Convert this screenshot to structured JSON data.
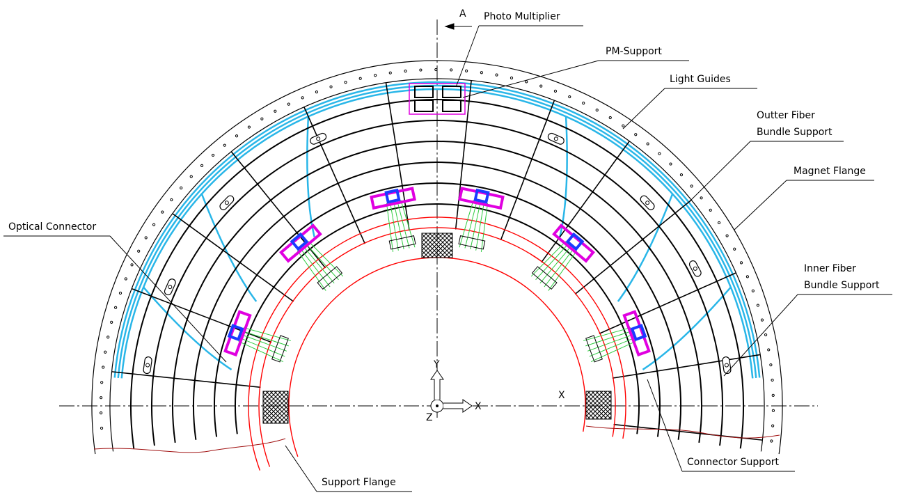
{
  "section_marker": "A",
  "view_marker": "X",
  "axes": {
    "y": "Y",
    "z": "Z",
    "x": "X"
  },
  "callouts": [
    {
      "lines": [
        "Photo Multiplier"
      ]
    },
    {
      "lines": [
        "PM-Support"
      ]
    },
    {
      "lines": [
        "Light Guides"
      ]
    },
    {
      "lines": [
        "Outter Fiber",
        "Bundle Support"
      ]
    },
    {
      "lines": [
        "Magnet Flange"
      ]
    },
    {
      "lines": [
        "Optical Connector"
      ]
    },
    {
      "lines": [
        "Inner Fiber",
        "Bundle Support"
      ]
    },
    {
      "lines": [
        "Connector Support"
      ]
    },
    {
      "lines": [
        "Support Flange"
      ]
    }
  ]
}
